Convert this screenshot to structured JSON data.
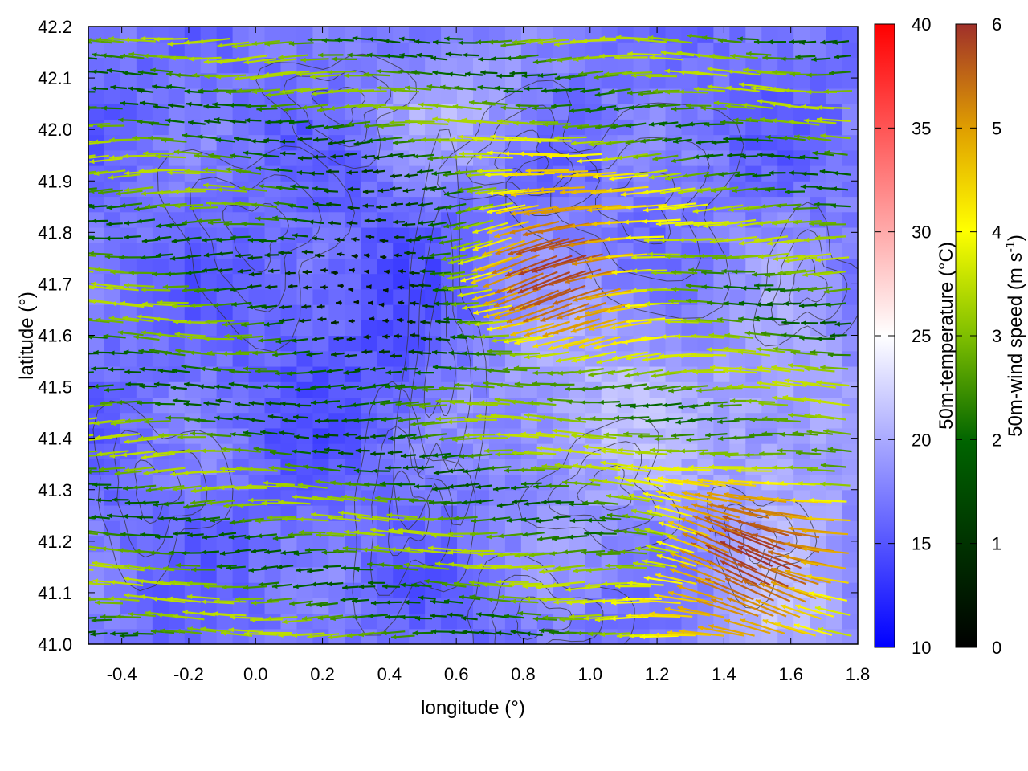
{
  "chart_data": {
    "type": "heatmap",
    "subtype": "temperature field with wind vectors and contour lines",
    "xlabel": "longitude (°)",
    "ylabel": "latitude (°)",
    "xlim": [
      -0.5,
      1.8
    ],
    "ylim": [
      41.0,
      42.2
    ],
    "x_ticks": [
      "-0.4",
      "-0.2",
      "0.0",
      "0.2",
      "0.4",
      "0.6",
      "0.8",
      "1.0",
      "1.2",
      "1.4",
      "1.6",
      "1.8"
    ],
    "y_ticks": [
      "41.0",
      "41.1",
      "41.2",
      "41.3",
      "41.4",
      "41.5",
      "41.6",
      "41.7",
      "41.8",
      "41.9",
      "42.0",
      "42.1",
      "42.2"
    ],
    "colorbars": [
      {
        "label": "50m-temperature (°C)",
        "range": [
          10,
          40
        ],
        "ticks": [
          "10",
          "15",
          "20",
          "25",
          "30",
          "35",
          "40"
        ],
        "colors": [
          "#0000ff",
          "#ffffff",
          "#ff0000"
        ]
      },
      {
        "label_main": "50m-wind speed (m s",
        "label_sup": "-1",
        "label_end": ")",
        "range": [
          0,
          6
        ],
        "ticks": [
          "0",
          "1",
          "2",
          "3",
          "4",
          "5",
          "6"
        ],
        "colors": [
          "#000000",
          "#006400",
          "#7fbf00",
          "#ffff00",
          "#e0a000",
          "#a0302a"
        ]
      }
    ],
    "field_notes": {
      "temperature_range_shown": [
        14,
        25
      ],
      "dominant_wind_direction": "westward",
      "strong_wind_zones": [
        {
          "lon": [
            0.7,
            1.2
          ],
          "lat": [
            41.6,
            41.9
          ],
          "speed": 6
        },
        {
          "lon": [
            1.3,
            1.8
          ],
          "lat": [
            41.0,
            41.3
          ],
          "speed": 6
        }
      ],
      "calm_zone": {
        "lon": [
          0.1,
          0.6
        ],
        "lat": [
          41.5,
          41.9
        ],
        "speed": 0.5
      }
    }
  }
}
